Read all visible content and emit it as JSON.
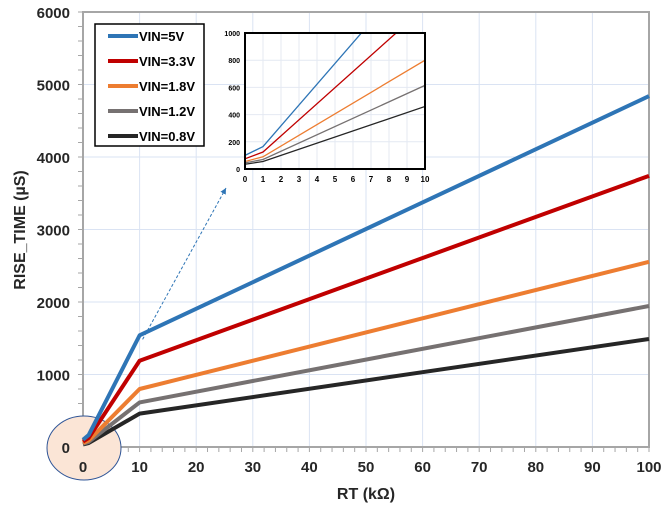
{
  "chart_data": [
    {
      "type": "line",
      "xlabel": "RT (kΩ)",
      "ylabel": "RISE_TIME (µS)",
      "xlim": [
        0,
        100
      ],
      "ylim": [
        0,
        6000
      ],
      "xticks": [
        0,
        10,
        20,
        30,
        40,
        50,
        60,
        70,
        80,
        90,
        100
      ],
      "yticks": [
        0,
        1000,
        2000,
        3000,
        4000,
        5000,
        6000
      ],
      "grid": true,
      "legend": "top-left",
      "x": [
        0,
        1,
        10,
        100
      ],
      "series": [
        {
          "name": "VIN=5V",
          "color": "#2e75b6",
          "values": [
            100,
            165,
            1540,
            4840
          ]
        },
        {
          "name": "VIN=3.3V",
          "color": "#c00000",
          "values": [
            75,
            125,
            1190,
            3740
          ]
        },
        {
          "name": "VIN=1.8V",
          "color": "#ed7d31",
          "values": [
            55,
            90,
            800,
            2555
          ]
        },
        {
          "name": "VIN=1.2V",
          "color": "#767171",
          "values": [
            45,
            70,
            615,
            1945
          ]
        },
        {
          "name": "VIN=0.8V",
          "color": "#262626",
          "values": [
            35,
            55,
            460,
            1490
          ]
        }
      ]
    },
    {
      "type": "line",
      "xlim": [
        0,
        10
      ],
      "ylim": [
        0,
        1000
      ],
      "xticks": [
        0,
        1,
        2,
        3,
        4,
        5,
        6,
        7,
        8,
        9,
        10
      ],
      "yticks": [
        0,
        200,
        400,
        600,
        800,
        1000
      ],
      "grid": true,
      "x": [
        0,
        1,
        10
      ],
      "series": [
        {
          "color": "#2e75b6",
          "values": [
            100,
            165,
            1540
          ]
        },
        {
          "color": "#c00000",
          "values": [
            75,
            125,
            1190
          ]
        },
        {
          "color": "#ed7d31",
          "values": [
            55,
            90,
            800
          ]
        },
        {
          "color": "#767171",
          "values": [
            45,
            70,
            615
          ]
        },
        {
          "color": "#262626",
          "values": [
            35,
            55,
            460
          ]
        }
      ]
    }
  ],
  "annotations": {
    "highlight_fill": "#fbe5d6",
    "highlight_stroke": "#2f5597"
  }
}
